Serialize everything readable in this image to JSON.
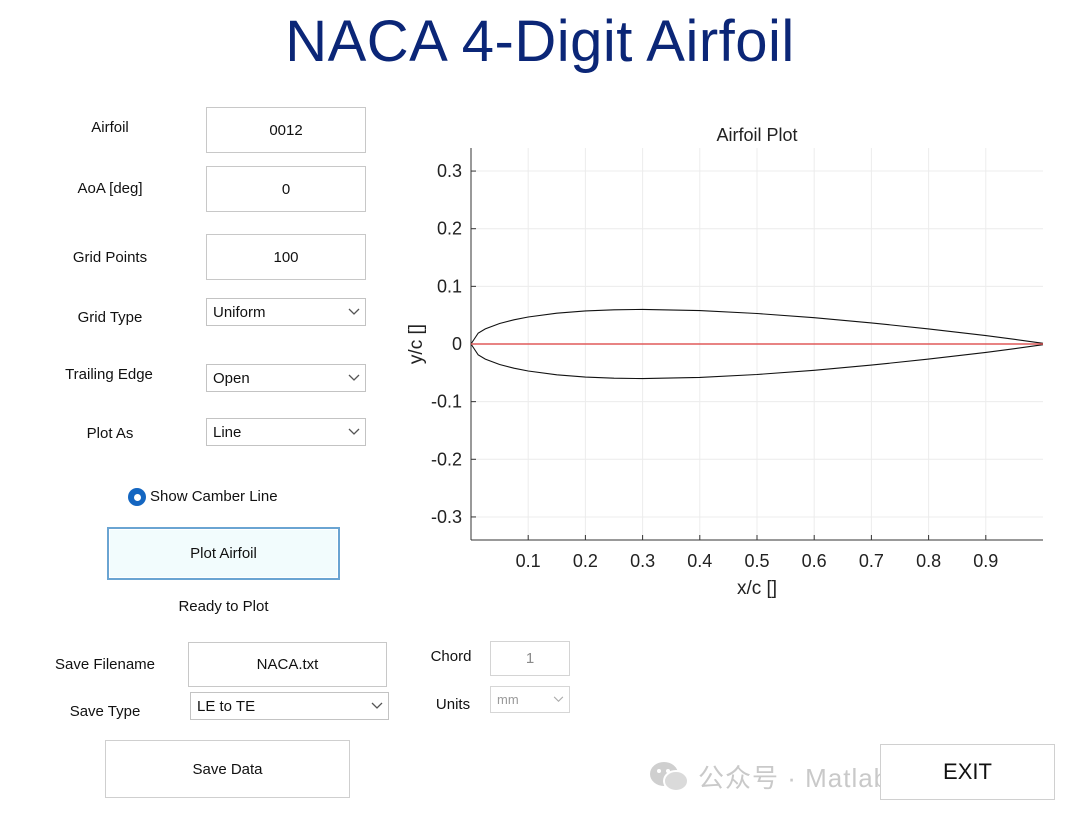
{
  "title": "NACA 4-Digit Airfoil",
  "inputs": {
    "airfoil": {
      "label": "Airfoil",
      "value": "0012"
    },
    "aoa": {
      "label": "AoA [deg]",
      "value": "0"
    },
    "grid_points": {
      "label": "Grid Points",
      "value": "100"
    },
    "grid_type": {
      "label": "Grid Type",
      "value": "Uniform"
    },
    "trailing_edge": {
      "label": "Trailing Edge",
      "value": "Open"
    },
    "plot_as": {
      "label": "Plot As",
      "value": "Line"
    }
  },
  "camber_toggle": {
    "label": "Show Camber Line",
    "checked": true
  },
  "plot_button": {
    "label": "Plot Airfoil"
  },
  "status": "Ready to Plot",
  "save": {
    "filename_label": "Save Filename",
    "filename_value": "NACA.txt",
    "type_label": "Save Type",
    "type_value": "LE to TE",
    "button_label": "Save Data"
  },
  "chord": {
    "label": "Chord",
    "value": "1"
  },
  "units": {
    "label": "Units",
    "value": "mm"
  },
  "exit_label": "EXIT",
  "watermark": "公众号 · Matlab科研助手",
  "colors": {
    "title": "#0b2677",
    "airfoil": "#111111",
    "camber": "#e05a5a",
    "radio": "#1466c1"
  },
  "chart_data": {
    "type": "line",
    "title": "Airfoil Plot",
    "xlabel": "x/c []",
    "ylabel": "y/c []",
    "xlim": [
      0,
      1
    ],
    "ylim": [
      -0.34,
      0.34
    ],
    "xticks": [
      0.1,
      0.2,
      0.3,
      0.4,
      0.5,
      0.6,
      0.7,
      0.8,
      0.9
    ],
    "yticks": [
      0.3,
      0.2,
      0.1,
      0,
      -0.1,
      -0.2,
      -0.3
    ],
    "grid": true,
    "series": [
      {
        "role": "upper",
        "color": "#111111",
        "x": [
          0,
          0.0125,
          0.025,
          0.05,
          0.075,
          0.1,
          0.15,
          0.2,
          0.25,
          0.3,
          0.4,
          0.5,
          0.6,
          0.7,
          0.8,
          0.9,
          0.95,
          1.0
        ],
        "y": [
          0,
          0.0189,
          0.0262,
          0.0355,
          0.042,
          0.0468,
          0.0534,
          0.0574,
          0.0594,
          0.06,
          0.058,
          0.0529,
          0.0456,
          0.0366,
          0.0262,
          0.0145,
          0.0081,
          0.0013
        ]
      },
      {
        "role": "lower",
        "color": "#111111",
        "x": [
          0,
          0.0125,
          0.025,
          0.05,
          0.075,
          0.1,
          0.15,
          0.2,
          0.25,
          0.3,
          0.4,
          0.5,
          0.6,
          0.7,
          0.8,
          0.9,
          0.95,
          1.0
        ],
        "y": [
          0,
          -0.0189,
          -0.0262,
          -0.0355,
          -0.042,
          -0.0468,
          -0.0534,
          -0.0574,
          -0.0594,
          -0.06,
          -0.058,
          -0.0529,
          -0.0456,
          -0.0366,
          -0.0262,
          -0.0145,
          -0.0081,
          -0.0013
        ]
      },
      {
        "role": "camber",
        "color": "#e05a5a",
        "x": [
          0,
          1
        ],
        "y": [
          0,
          0
        ]
      }
    ]
  }
}
